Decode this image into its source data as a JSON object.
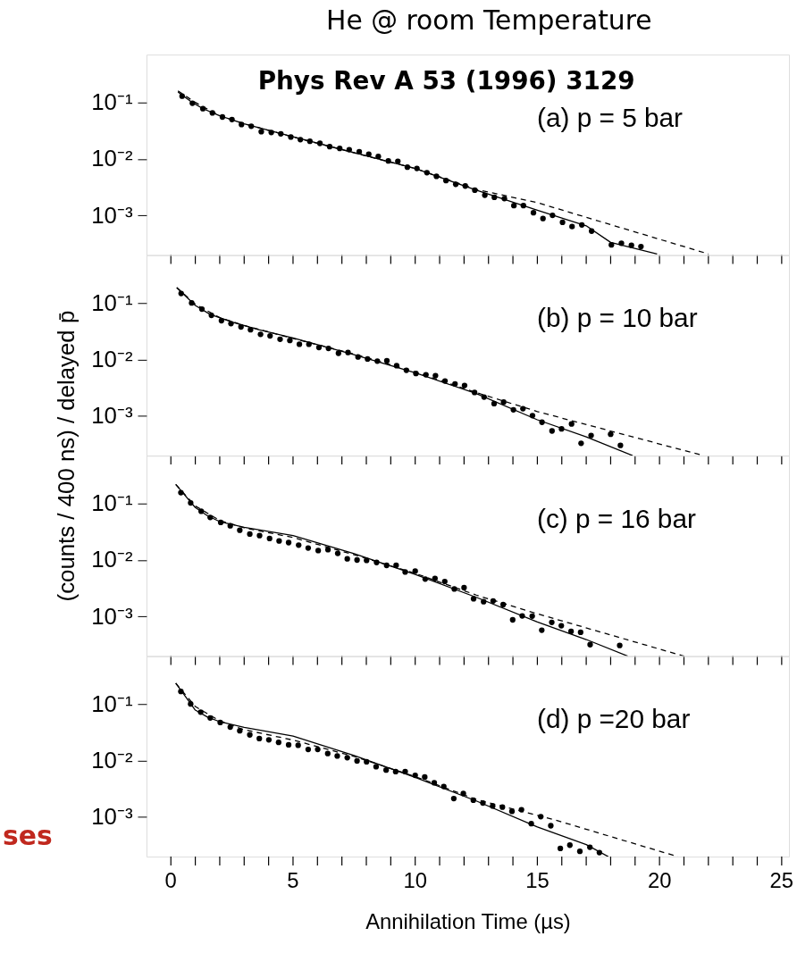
{
  "chart_data": [
    {
      "type": "scatter",
      "title": "He @ room Temperature",
      "subtitle": "Phys Rev A 53 (1996) 3129",
      "annotations": [
        "(a) p = 5 bar"
      ],
      "log": true,
      "tick_labels": "y",
      "xlim": [
        -1,
        25.3
      ],
      "xticks": [
        0,
        {
          "value": 1,
          "label": null
        },
        {
          "value": 2,
          "label": null
        },
        {
          "value": 3,
          "label": null
        },
        {
          "value": 4,
          "label": null
        },
        5,
        {
          "value": 6,
          "label": null
        },
        {
          "value": 7,
          "label": null
        },
        {
          "value": 8,
          "label": null
        },
        {
          "value": 9,
          "label": null
        },
        10,
        {
          "value": 11,
          "label": null
        },
        {
          "value": 12,
          "label": null
        },
        {
          "value": 13,
          "label": null
        },
        {
          "value": 14,
          "label": null
        },
        15,
        {
          "value": 16,
          "label": null
        },
        {
          "value": 17,
          "label": null
        },
        {
          "value": 18,
          "label": null
        },
        {
          "value": 19,
          "label": null
        },
        20,
        {
          "value": 21,
          "label": null
        },
        {
          "value": 22,
          "label": null
        },
        {
          "value": 23,
          "label": null
        },
        {
          "value": 24,
          "label": null
        },
        25
      ],
      "ylim": [
        0.0002,
        0.7
      ],
      "yticks": [
        {
          "value": 0.1,
          "label": "10⁻¹"
        },
        {
          "value": 0.01,
          "label": "10⁻²"
        },
        {
          "value": 0.001,
          "label": "10⁻³"
        }
      ],
      "series": [
        {
          "marker": "circle",
          "color": "#000000",
          "x": [
            0.46,
            0.88,
            1.31,
            1.7,
            2.11,
            2.5,
            2.89,
            3.29,
            3.7,
            4.11,
            4.5,
            4.91,
            5.3,
            5.69,
            6.1,
            6.5,
            6.91,
            7.3,
            7.71,
            8.1,
            8.49,
            8.9,
            9.29,
            9.68,
            10.07,
            10.48,
            10.87,
            11.26,
            11.66,
            12.05,
            12.44,
            12.85,
            13.24,
            13.65,
            14.04,
            14.43,
            14.84,
            15.23,
            15.62,
            16.03,
            16.42,
            16.82,
            17.22,
            18.03,
            18.44,
            18.85,
            19.24
          ],
          "values": [
            0.129,
            0.0966,
            0.0775,
            0.0653,
            0.0552,
            0.0498,
            0.0406,
            0.0379,
            0.0304,
            0.0294,
            0.0279,
            0.0244,
            0.022,
            0.0206,
            0.0189,
            0.0165,
            0.0154,
            0.0146,
            0.0134,
            0.0121,
            0.0111,
            0.00925,
            0.0091,
            0.00717,
            0.00681,
            0.00574,
            0.00493,
            0.00416,
            0.00357,
            0.00333,
            0.00281,
            0.00229,
            0.0021,
            0.002,
            0.0015,
            0.0015,
            0.00112,
            0.000885,
            0.00101,
            0.000759,
            0.00064,
            0.000684,
            0.000531,
            0.000303,
            0.000324,
            0.000298,
            0.000283
          ]
        },
        {
          "type": "line",
          "line_style": "solid",
          "color": "#000000",
          "x": [
            0.29,
            0.8,
            1.3,
            2,
            3,
            5,
            7.5,
            10,
            12.5,
            15,
            17,
            18,
            19.9
          ],
          "values": [
            0.153,
            0.105,
            0.078,
            0.058,
            0.042,
            0.0248,
            0.013,
            0.0068,
            0.00281,
            0.00124,
            0.00066,
            0.000336,
            0.00021
          ]
        },
        {
          "type": "line",
          "line_style": "dashed",
          "color": "#000000",
          "x": [
            0.29,
            1,
            2,
            3,
            5,
            7.5,
            10,
            12.5,
            15,
            22
          ],
          "values": [
            0.16,
            0.1,
            0.058,
            0.042,
            0.0245,
            0.0128,
            0.0068,
            0.0029,
            0.00169,
            0.00021
          ]
        }
      ]
    },
    {
      "type": "scatter",
      "annotations": [
        "(b) p = 10 bar"
      ],
      "log": true,
      "tick_labels": "y",
      "xlim": [
        -1,
        25.3
      ],
      "xticks": [
        0,
        {
          "value": 1,
          "label": null
        },
        {
          "value": 2,
          "label": null
        },
        {
          "value": 3,
          "label": null
        },
        {
          "value": 4,
          "label": null
        },
        5,
        {
          "value": 6,
          "label": null
        },
        {
          "value": 7,
          "label": null
        },
        {
          "value": 8,
          "label": null
        },
        {
          "value": 9,
          "label": null
        },
        10,
        {
          "value": 11,
          "label": null
        },
        {
          "value": 12,
          "label": null
        },
        {
          "value": 13,
          "label": null
        },
        {
          "value": 14,
          "label": null
        },
        15,
        {
          "value": 16,
          "label": null
        },
        {
          "value": 17,
          "label": null
        },
        {
          "value": 18,
          "label": null
        },
        {
          "value": 19,
          "label": null
        },
        20,
        {
          "value": 21,
          "label": null
        },
        {
          "value": 22,
          "label": null
        },
        {
          "value": 23,
          "label": null
        },
        {
          "value": 24,
          "label": null
        },
        25
      ],
      "ylim": [
        0.0002,
        0.7
      ],
      "yticks": [
        {
          "value": 0.1,
          "label": "10⁻¹"
        },
        {
          "value": 0.01,
          "label": "10⁻²"
        },
        {
          "value": 0.001,
          "label": "10⁻³"
        }
      ],
      "series": [
        {
          "marker": "circle",
          "color": "#000000",
          "x": [
            0.42,
            0.85,
            1.27,
            1.66,
            2.07,
            2.46,
            2.87,
            3.26,
            3.67,
            4.06,
            4.47,
            4.87,
            5.26,
            5.65,
            6.06,
            6.45,
            6.86,
            7.25,
            7.66,
            8.05,
            8.45,
            8.84,
            9.24,
            9.64,
            10.03,
            10.44,
            10.83,
            11.22,
            11.63,
            12.02,
            12.43,
            12.82,
            13.23,
            13.62,
            14.02,
            14.41,
            14.8,
            15.19,
            15.6,
            15.99,
            16.4,
            16.79,
            17.2,
            18.0,
            18.4
          ],
          "values": [
            0.147,
            0.1,
            0.0778,
            0.0604,
            0.0485,
            0.0431,
            0.0377,
            0.0336,
            0.0279,
            0.0261,
            0.0228,
            0.0217,
            0.0186,
            0.0186,
            0.0163,
            0.0157,
            0.0129,
            0.0133,
            0.0111,
            0.0102,
            0.00935,
            0.0095,
            0.00778,
            0.00646,
            0.00565,
            0.00537,
            0.00519,
            0.00417,
            0.00371,
            0.00347,
            0.00261,
            0.00217,
            0.00166,
            0.00177,
            0.00129,
            0.00135,
            0.00102,
            0.000778,
            0.000546,
            0.000594,
            0.000726,
            0.00033,
            0.000454,
            0.000478,
            0.000303
          ]
        },
        {
          "type": "line",
          "line_style": "solid",
          "color": "#000000",
          "x": [
            0.24,
            1,
            1.6,
            2.5,
            3.6,
            5,
            7.5,
            10,
            12.5,
            15,
            17,
            18.9
          ],
          "values": [
            0.186,
            0.09,
            0.063,
            0.046,
            0.0336,
            0.024,
            0.0122,
            0.0058,
            0.0025,
            0.00086,
            0.00043,
            0.0002
          ]
        },
        {
          "type": "line",
          "line_style": "dashed",
          "color": "#000000",
          "x": [
            0.24,
            1,
            2,
            3,
            5,
            7.5,
            10,
            12.5,
            15,
            21.8
          ],
          "values": [
            0.186,
            0.095,
            0.055,
            0.04,
            0.0235,
            0.0125,
            0.006,
            0.0026,
            0.0012,
            0.0002
          ]
        }
      ]
    },
    {
      "type": "scatter",
      "annotations": [
        "(c) p = 16 bar"
      ],
      "ylabel": "(counts / 400 ns) / delayed p̄",
      "log": true,
      "tick_labels": "y",
      "xlim": [
        -1,
        25.3
      ],
      "xticks": [
        0,
        {
          "value": 1,
          "label": null
        },
        {
          "value": 2,
          "label": null
        },
        {
          "value": 3,
          "label": null
        },
        {
          "value": 4,
          "label": null
        },
        5,
        {
          "value": 6,
          "label": null
        },
        {
          "value": 7,
          "label": null
        },
        {
          "value": 8,
          "label": null
        },
        {
          "value": 9,
          "label": null
        },
        10,
        {
          "value": 11,
          "label": null
        },
        {
          "value": 12,
          "label": null
        },
        {
          "value": 13,
          "label": null
        },
        {
          "value": 14,
          "label": null
        },
        15,
        {
          "value": 16,
          "label": null
        },
        {
          "value": 17,
          "label": null
        },
        {
          "value": 18,
          "label": null
        },
        {
          "value": 19,
          "label": null
        },
        20,
        {
          "value": 21,
          "label": null
        },
        {
          "value": 22,
          "label": null
        },
        {
          "value": 23,
          "label": null
        },
        {
          "value": 24,
          "label": null
        },
        25
      ],
      "ylim": [
        0.0002,
        0.7
      ],
      "yticks": [
        {
          "value": 0.1,
          "label": "10⁻¹"
        },
        {
          "value": 0.01,
          "label": "10⁻²"
        },
        {
          "value": 0.001,
          "label": "10⁻³"
        }
      ],
      "series": [
        {
          "marker": "circle",
          "color": "#000000",
          "x": [
            0.41,
            0.81,
            1.24,
            1.61,
            2.04,
            2.43,
            2.82,
            3.23,
            3.63,
            4.04,
            4.43,
            4.82,
            5.23,
            5.62,
            6.03,
            6.43,
            6.83,
            7.22,
            7.62,
            8.01,
            8.42,
            8.83,
            9.22,
            9.59,
            10.0,
            10.41,
            10.81,
            11.21,
            11.6,
            12.0,
            12.39,
            12.8,
            13.19,
            13.6,
            13.99,
            14.38,
            14.79,
            15.18,
            15.59,
            15.98,
            16.38,
            16.77,
            17.16,
            18.37
          ],
          "values": [
            0.155,
            0.102,
            0.0726,
            0.0565,
            0.0461,
            0.0403,
            0.0336,
            0.0288,
            0.027,
            0.024,
            0.0217,
            0.0203,
            0.0183,
            0.0163,
            0.0147,
            0.0152,
            0.0131,
            0.0105,
            0.01,
            0.00984,
            0.00904,
            0.00804,
            0.00804,
            0.00614,
            0.00635,
            0.00461,
            0.0047,
            0.00417,
            0.00308,
            0.00324,
            0.00206,
            0.00183,
            0.00189,
            0.00163,
            0.000875,
            0.00103,
            0.00102,
            0.000574,
            0.000791,
            0.00069,
            0.000546,
            0.000528,
            0.000319,
            0.000308
          ]
        },
        {
          "type": "line",
          "line_style": "solid",
          "color": "#000000",
          "x": [
            0.2,
            1,
            1.5,
            2,
            3,
            5,
            7.5,
            10,
            12.5,
            15,
            17,
            18.7
          ],
          "values": [
            0.217,
            0.0845,
            0.0605,
            0.0477,
            0.0377,
            0.027,
            0.0129,
            0.00556,
            0.00219,
            0.000803,
            0.000393,
            0.0002
          ]
        },
        {
          "type": "line",
          "line_style": "dashed",
          "color": "#000000",
          "x": [
            0.2,
            1,
            2,
            3,
            5,
            7.5,
            10,
            12.5,
            15,
            21.0
          ],
          "values": [
            0.217,
            0.09,
            0.05,
            0.037,
            0.025,
            0.0124,
            0.0058,
            0.0024,
            0.00112,
            0.0002
          ]
        }
      ]
    },
    {
      "type": "scatter",
      "annotations": [
        "(d) p =20 bar",
        "ses"
      ],
      "xlabel": "Annihilation Time (µs)",
      "log": true,
      "xlim": [
        -1,
        25.3
      ],
      "xticks": [
        0,
        {
          "value": 1,
          "label": null
        },
        {
          "value": 2,
          "label": null
        },
        {
          "value": 3,
          "label": null
        },
        {
          "value": 4,
          "label": null
        },
        5,
        {
          "value": 6,
          "label": null
        },
        {
          "value": 7,
          "label": null
        },
        {
          "value": 8,
          "label": null
        },
        {
          "value": 9,
          "label": null
        },
        10,
        {
          "value": 11,
          "label": null
        },
        {
          "value": 12,
          "label": null
        },
        {
          "value": 13,
          "label": null
        },
        {
          "value": 14,
          "label": null
        },
        15,
        {
          "value": 16,
          "label": null
        },
        {
          "value": 17,
          "label": null
        },
        {
          "value": 18,
          "label": null
        },
        {
          "value": 19,
          "label": null
        },
        20,
        {
          "value": 21,
          "label": null
        },
        {
          "value": 22,
          "label": null
        },
        {
          "value": 23,
          "label": null
        },
        {
          "value": 24,
          "label": null
        },
        25
      ],
      "ylim": [
        0.0002,
        0.7
      ],
      "yticks": [
        {
          "value": 0.1,
          "label": "10⁻¹"
        },
        {
          "value": 0.01,
          "label": "10⁻²"
        },
        {
          "value": 0.001,
          "label": "10⁻³"
        }
      ],
      "series": [
        {
          "marker": "circle",
          "color": "#000000",
          "x": [
            0.41,
            0.81,
            1.22,
            1.61,
            2.02,
            2.43,
            2.82,
            3.23,
            3.62,
            4.01,
            4.41,
            4.82,
            5.21,
            5.62,
            6.01,
            6.42,
            6.81,
            7.22,
            7.62,
            8.01,
            8.4,
            8.81,
            9.2,
            9.59,
            10.0,
            10.39,
            10.78,
            11.17,
            11.58,
            11.97,
            12.38,
            12.77,
            13.17,
            13.57,
            13.96,
            14.35,
            14.75,
            15.14,
            15.55,
            15.94,
            16.33,
            16.74,
            17.15,
            17.54
          ],
          "values": [
            0.166,
            0.1,
            0.0715,
            0.0565,
            0.047,
            0.039,
            0.0336,
            0.0284,
            0.0244,
            0.0232,
            0.0209,
            0.0189,
            0.0186,
            0.0157,
            0.0157,
            0.0133,
            0.012,
            0.0112,
            0.00984,
            0.0095,
            0.00778,
            0.00679,
            0.00635,
            0.00635,
            0.00546,
            0.0051,
            0.00404,
            0.00347,
            0.00213,
            0.00261,
            0.00199,
            0.00177,
            0.00157,
            0.0015,
            0.00126,
            0.00135,
            0.000764,
            0.00102,
            0.000703,
            0.000279,
            0.000319,
            0.000248,
            0.000293,
            0.000236
          ]
        },
        {
          "type": "line",
          "line_style": "solid",
          "color": "#000000",
          "x": [
            0.2,
            1,
            1.5,
            2,
            3,
            5,
            7.5,
            10,
            12.5,
            15,
            17,
            17.9
          ],
          "values": [
            0.232,
            0.0778,
            0.0584,
            0.0486,
            0.0384,
            0.027,
            0.0123,
            0.00502,
            0.00193,
            0.000668,
            0.000327,
            0.0002
          ]
        },
        {
          "type": "line",
          "line_style": "dashed",
          "color": "#000000",
          "x": [
            0.2,
            1,
            2,
            3,
            5,
            7.5,
            10,
            12.5,
            15.65,
            20.75
          ],
          "values": [
            0.232,
            0.09,
            0.05,
            0.035,
            0.023,
            0.0118,
            0.0052,
            0.00205,
            0.00091,
            0.0002
          ]
        }
      ]
    }
  ]
}
